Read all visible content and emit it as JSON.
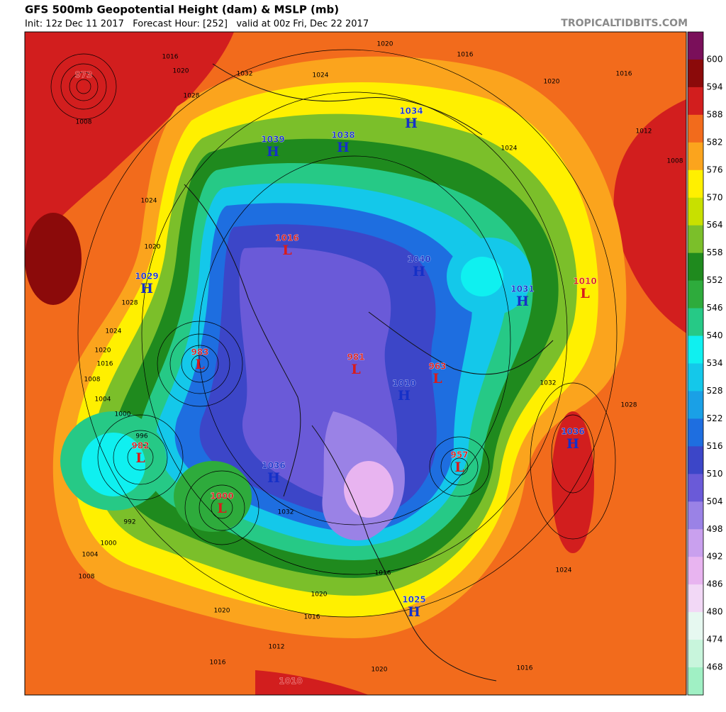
{
  "header": {
    "title": "GFS 500mb Geopotential Height (dam) & MSLP (mb)",
    "subtitle": "Init: 12z Dec 11 2017   Forecast Hour: [252]   valid at 00z Fri, Dec 22 2017",
    "credit": "TROPICALTIDBITS.COM"
  },
  "colorbar": {
    "levels": [
      600,
      594,
      588,
      582,
      576,
      570,
      564,
      558,
      552,
      546,
      540,
      534,
      528,
      522,
      516,
      510,
      504,
      498,
      492,
      486,
      480,
      474,
      468
    ],
    "colors": [
      "#7a0f5a",
      "#8b0a0a",
      "#d21e1e",
      "#f26b1c",
      "#fba41d",
      "#fff000",
      "#c8e000",
      "#7bbf2a",
      "#1f8a1e",
      "#2eab3c",
      "#26c986",
      "#0ff0f0",
      "#14c8ea",
      "#1aa0e6",
      "#1e6ee0",
      "#3c46c8",
      "#6a5ad8",
      "#9a82e6",
      "#c9a0ee",
      "#e8b4f0",
      "#f2d8f6",
      "#e6f8f0",
      "#c8f5dc",
      "#a0f0c4"
    ]
  },
  "pressure_centers": [
    {
      "type": "L",
      "value": 973
    },
    {
      "type": "H",
      "value": 1039
    },
    {
      "type": "H",
      "value": 1038
    },
    {
      "type": "H",
      "value": 1034
    },
    {
      "type": "L",
      "value": 1016
    },
    {
      "type": "H",
      "value": 1029
    },
    {
      "type": "H",
      "value": 1040
    },
    {
      "type": "H",
      "value": 1031
    },
    {
      "type": "L",
      "value": 1010
    },
    {
      "type": "L",
      "value": 983
    },
    {
      "type": "L",
      "value": 981
    },
    {
      "type": "L",
      "value": 963
    },
    {
      "type": "H",
      "value": 1010
    },
    {
      "type": "H",
      "value": 1036
    },
    {
      "type": "L",
      "value": 982
    },
    {
      "type": "L",
      "value": 957
    },
    {
      "type": "H",
      "value": 1036
    },
    {
      "type": "L",
      "value": 1000
    },
    {
      "type": "H",
      "value": 1025
    },
    {
      "type": "L",
      "value": 1010
    }
  ],
  "isobar_labels": [
    1016,
    1020,
    1028,
    1008,
    1032,
    1024,
    1020,
    1016,
    1016,
    1020,
    1024,
    1012,
    1008,
    1024,
    1020,
    1028,
    1024,
    1020,
    1016,
    1008,
    1004,
    1000,
    996,
    992,
    1000,
    1004,
    1008,
    1020,
    1016,
    1012,
    1020,
    1016,
    1024,
    1028,
    1032,
    1020,
    1016,
    1016,
    1032
  ]
}
